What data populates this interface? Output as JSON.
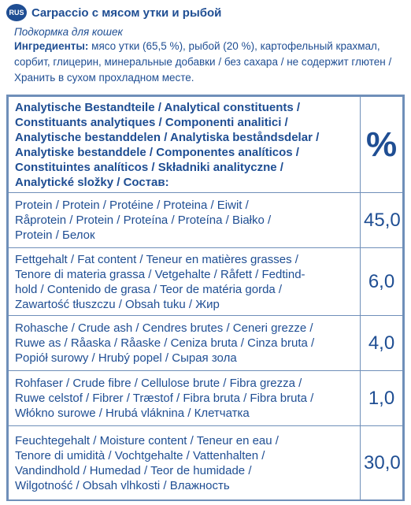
{
  "rus_header": {
    "badge": "RUS",
    "title": "Carpaccio с мясом утки и рыбой",
    "subtitle": "Подкормка для кошек",
    "ingredients_label": "Ингредиенты:",
    "ingredients_text": " мясо утки (65,5 %), рыбой (20 %), картофельный крахмал, сорбит, глицерин, минеральные добавки / без сахара / не содержит глютен / Хранить в сухом прохладном месте."
  },
  "table": {
    "header": {
      "lines": [
        "Analytische Bestandteile / Analytical constituents /",
        "Constituants analytiques / Componenti analitici /",
        "Analytische bestanddelen / Analytiska beståndsdelar /",
        "Analytiske bestanddele / Componentes analíticos /",
        "Constituintes analíticos / Składniki analityczne /",
        "Analytické složky / Состав:"
      ],
      "value": "%"
    },
    "rows": [
      {
        "lines": [
          "Protein / Protein / Protéine / Proteina / Eiwit /",
          "Råprotein / Protein / Proteína / Proteína / Białko /",
          "Protein / Белок"
        ],
        "value": "45,0"
      },
      {
        "lines": [
          "Fettgehalt / Fat content / Teneur en matières grasses /",
          "Tenore di materia grassa / Vetgehalte / Råfett / Fedtind-",
          "hold / Contenido de grasa / Teor de matéria gorda /",
          "Zawartość tłuszczu / Obsah tuku / Жир"
        ],
        "value": "6,0"
      },
      {
        "lines": [
          "Rohasche / Crude ash / Cendres brutes / Ceneri grezze /",
          "Ruwe as / Råaska / Råaske / Ceniza bruta / Cinza bruta /",
          "Popiół surowy / Hrubý popel / Сырая зола"
        ],
        "value": "4,0"
      },
      {
        "lines": [
          "Rohfaser / Crude fibre / Cellulose brute / Fibra grezza /",
          "Ruwe celstof / Fibrer / Træstof / Fibra bruta / Fibra bruta /",
          "Włókno surowe / Hrubá vláknina / Клетчатка"
        ],
        "value": "1,0"
      },
      {
        "lines": [
          "Feuchtegehalt / Moisture content / Teneur en eau /",
          "Tenore di umidità / Vochtgehalte / Vattenhalten /",
          "Vandindhold / Humedad / Teor de humidade /",
          "Wilgotność / Obsah vlhkosti / Влажность"
        ],
        "value": "30,0"
      }
    ]
  }
}
